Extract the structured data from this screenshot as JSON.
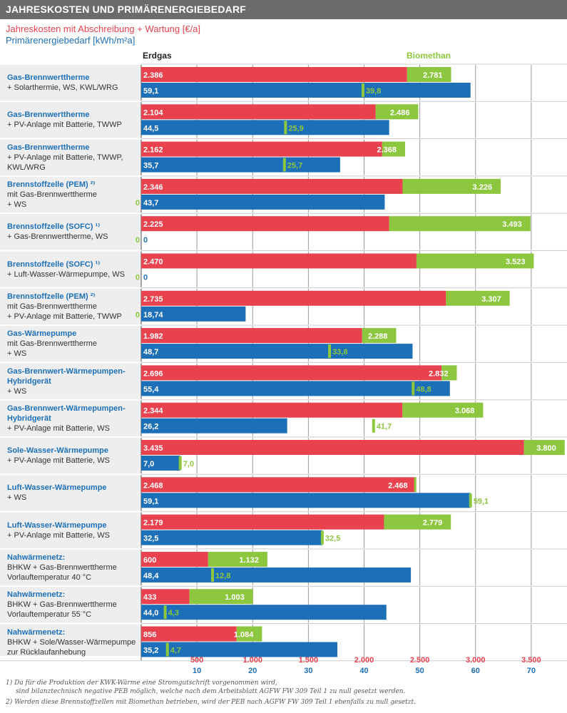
{
  "header": {
    "title": "JAHRESKOSTEN UND PRIMÄRENERGIEBEDARF",
    "subtitle_costs": "Jahreskosten mit Abschreibung + Wartung [€/a]",
    "subtitle_energy": "Primärenergiebedarf [kWh/m²a]",
    "col_erdgas": "Erdgas",
    "col_biomethan": "Biomethan"
  },
  "colors": {
    "red": "#e8424f",
    "green": "#8dc63f",
    "blue": "#1d70b7",
    "grid": "#999999",
    "row_bg": "#ffffff",
    "label_bg": "#eeeeee"
  },
  "axes": {
    "cost_ticks": [
      "500",
      "1.000",
      "1.500",
      "2.000",
      "2.500",
      "3.000",
      "3.500"
    ],
    "energy_ticks": [
      "10",
      "20",
      "30",
      "40",
      "50",
      "60",
      "70"
    ]
  },
  "footnotes": [
    "1)  Da für die Produktion der KWK-Wärme eine Stromgutschrift vorgenommen wird,",
    "sind bilanztechnisch negative PEB möglich, welche nach dem Arbeitsblatt AGFW FW 309 Teil 1 zu null gesetzt werden.",
    "2)  Werden diese Brennstoffzellen mit Biomethan betrieben, wird der PEB  nach AGFW FW 309 Teil 1 ebenfalls zu null gesetzt."
  ],
  "chart_data": {
    "type": "bar",
    "title": "JAHRESKOSTEN UND PRIMÄRENERGIEBEDARF",
    "series": [
      {
        "name": "Erdgas",
        "metric": "Jahreskosten mit Abschreibung + Wartung [€/a]"
      },
      {
        "name": "Biomethan",
        "metric": "Jahreskosten mit Abschreibung + Wartung [€/a]"
      },
      {
        "name": "Erdgas",
        "metric": "Primärenergiebedarf [kWh/m²a]"
      },
      {
        "name": "Biomethan",
        "metric": "Primärenergiebedarf [kWh/m²a]"
      }
    ],
    "cost_axis": {
      "range": [
        0,
        3750
      ]
    },
    "energy_axis": {
      "range": [
        0,
        75
      ]
    },
    "rows": [
      {
        "title": "Gas-Brennwerttherme",
        "lines": [
          "+ Solarthermie, WS, KWL/WRG"
        ],
        "cost_erdgas": 2386,
        "cost_erdgas_label": "2.386",
        "cost_bio": 2781,
        "cost_bio_label": "2.781",
        "peb_erdgas": 59.1,
        "peb_erdgas_label": "59,1",
        "peb_bio": 39.8,
        "peb_bio_label": "39,8",
        "left_zero": ""
      },
      {
        "title": "Gas-Brennwerttherme",
        "lines": [
          "+ PV-Anlage mit Batterie, TWWP"
        ],
        "cost_erdgas": 2104,
        "cost_erdgas_label": "2.104",
        "cost_bio": 2486,
        "cost_bio_label": "2.486",
        "peb_erdgas": 44.5,
        "peb_erdgas_label": "44,5",
        "peb_bio": 25.9,
        "peb_bio_label": "25,9",
        "left_zero": ""
      },
      {
        "title": "Gas-Brennwerttherme",
        "lines": [
          "+ PV-Anlage mit Batterie, TWWP,",
          "KWL/WRG"
        ],
        "cost_erdgas": 2162,
        "cost_erdgas_label": "2.162",
        "cost_bio": 2368,
        "cost_bio_label": "2.368",
        "peb_erdgas": 35.7,
        "peb_erdgas_label": "35,7",
        "peb_bio": 25.7,
        "peb_bio_label": "25,7",
        "left_zero": ""
      },
      {
        "title": "Brennstoffzelle (PEM) ²⁾",
        "lines": [
          "mit Gas-Brennwerttherme",
          "+ WS"
        ],
        "cost_erdgas": 2346,
        "cost_erdgas_label": "2.346",
        "cost_bio": 3226,
        "cost_bio_label": "3.226",
        "peb_erdgas": 43.7,
        "peb_erdgas_label": "43,7",
        "peb_bio": 0,
        "peb_bio_label": "",
        "left_zero": "0"
      },
      {
        "title": "Brennstoffzelle (SOFC) ¹⁾",
        "lines": [
          "+ Gas-Brennwerttherme, WS"
        ],
        "cost_erdgas": 2225,
        "cost_erdgas_label": "2.225",
        "cost_bio": 3493,
        "cost_bio_label": "3.493",
        "peb_erdgas": 0,
        "peb_erdgas_label": "0",
        "peb_bio": 0,
        "peb_bio_label": "",
        "left_zero": "0"
      },
      {
        "title": "Brennstoffzelle (SOFC) ¹⁾",
        "lines": [
          "+ Luft-Wasser-Wärmepumpe, WS"
        ],
        "cost_erdgas": 2470,
        "cost_erdgas_label": "2.470",
        "cost_bio": 3523,
        "cost_bio_label": "3.523",
        "peb_erdgas": 0,
        "peb_erdgas_label": "0",
        "peb_bio": 0,
        "peb_bio_label": "",
        "left_zero": "0"
      },
      {
        "title": "Brennstoffzelle (PEM) ²⁾",
        "lines": [
          "mit Gas-Brennwerttherme",
          "+ PV-Anlage mit Batterie, TWWP"
        ],
        "cost_erdgas": 2735,
        "cost_erdgas_label": "2.735",
        "cost_bio": 3307,
        "cost_bio_label": "3.307",
        "peb_erdgas": 18.74,
        "peb_erdgas_label": "18,74",
        "peb_bio": 0,
        "peb_bio_label": "",
        "left_zero": "0"
      },
      {
        "title": "Gas-Wärmepumpe",
        "lines": [
          "mit Gas-Brennwerttherme",
          "+ WS"
        ],
        "cost_erdgas": 1982,
        "cost_erdgas_label": "1.982",
        "cost_bio": 2288,
        "cost_bio_label": "2.288",
        "peb_erdgas": 48.7,
        "peb_erdgas_label": "48,7",
        "peb_bio": 33.8,
        "peb_bio_label": "33,8",
        "left_zero": ""
      },
      {
        "title": "Gas-Brennwert-Wärmepumpen-",
        "lines": [
          "Hybridgerät",
          "+ WS"
        ],
        "bold_lines": 1,
        "cost_erdgas": 2696,
        "cost_erdgas_label": "2.696",
        "cost_bio": 2832,
        "cost_bio_label": "2.832",
        "peb_erdgas": 55.4,
        "peb_erdgas_label": "55,4",
        "peb_bio": 48.8,
        "peb_bio_label": "48,8",
        "left_zero": ""
      },
      {
        "title": "Gas-Brennwert-Wärmepumpen-",
        "lines": [
          "Hybridgerät",
          "+ PV-Anlage mit Batterie, WS"
        ],
        "bold_lines": 1,
        "cost_erdgas": 2344,
        "cost_erdgas_label": "2.344",
        "cost_bio": 3068,
        "cost_bio_label": "3.068",
        "peb_erdgas": 26.2,
        "peb_erdgas_label": "26,2",
        "peb_bio": 41.7,
        "peb_bio_label": "41,7",
        "left_zero": ""
      },
      {
        "title": "Sole-Wasser-Wärmepumpe",
        "lines": [
          "+ PV-Anlage mit Batterie, WS"
        ],
        "cost_erdgas": 3435,
        "cost_erdgas_label": "3.435",
        "cost_bio": 3800,
        "cost_bio_label": "3.800",
        "peb_erdgas": 7.0,
        "peb_erdgas_label": "7,0",
        "peb_bio": 7.0,
        "peb_bio_label": "7,0",
        "left_zero": ""
      },
      {
        "title": "Luft-Wasser-Wärmepumpe",
        "lines": [
          "+ WS"
        ],
        "cost_erdgas": 2468,
        "cost_erdgas_label": "2.468",
        "cost_bio": 2468,
        "cost_bio_label": "2.468",
        "peb_erdgas": 59.1,
        "peb_erdgas_label": "59,1",
        "peb_bio": 59.1,
        "peb_bio_label": "59,1",
        "left_zero": ""
      },
      {
        "title": "Luft-Wasser-Wärmepumpe",
        "lines": [
          "+ PV-Anlage mit Batterie, WS"
        ],
        "cost_erdgas": 2179,
        "cost_erdgas_label": "2.179",
        "cost_bio": 2779,
        "cost_bio_label": "2.779",
        "peb_erdgas": 32.5,
        "peb_erdgas_label": "32,5",
        "peb_bio": 32.5,
        "peb_bio_label": "32,5",
        "left_zero": ""
      },
      {
        "title": "Nahwärmenetz:",
        "lines": [
          "BHKW + Gas-Brennwerttherme",
          "Vorlauftemperatur 40 °C"
        ],
        "cost_erdgas": 600,
        "cost_erdgas_label": "600",
        "cost_bio": 1132,
        "cost_bio_label": "1.132",
        "peb_erdgas": 48.4,
        "peb_erdgas_label": "48,4",
        "peb_bio": 12.8,
        "peb_bio_label": "12,8",
        "left_zero": ""
      },
      {
        "title": "Nahwärmenetz:",
        "lines": [
          "BHKW + Gas-Brennwerttherme",
          "Vorlauftemperatur 55 °C"
        ],
        "cost_erdgas": 433,
        "cost_erdgas_label": "433",
        "cost_bio": 1003,
        "cost_bio_label": "1.003",
        "peb_erdgas": 44.0,
        "peb_erdgas_label": "44,0",
        "peb_bio": 4.3,
        "peb_bio_label": "4,3",
        "left_zero": ""
      },
      {
        "title": "Nahwärmenetz:",
        "lines": [
          "BHKW + Sole/Wasser-Wärmepumpe",
          "zur Rücklaufanhebung"
        ],
        "cost_erdgas": 856,
        "cost_erdgas_label": "856",
        "cost_bio": 1084,
        "cost_bio_label": "1.084",
        "peb_erdgas": 35.2,
        "peb_erdgas_label": "35,2",
        "peb_bio": 4.7,
        "peb_bio_label": "4,7",
        "left_zero": ""
      }
    ]
  }
}
